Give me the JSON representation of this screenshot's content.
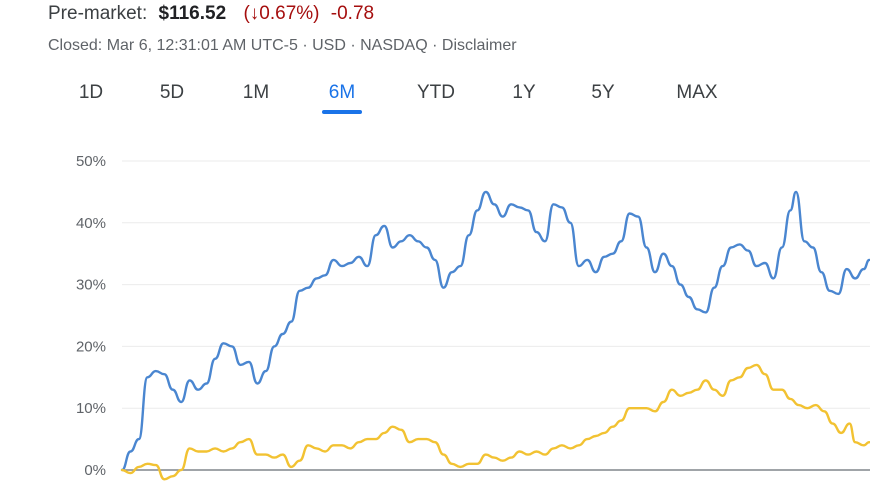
{
  "header": {
    "label": "Pre-market:",
    "price": "$116.52",
    "change_pct": "(↓0.67%)",
    "change_abs": "-0.78"
  },
  "status": {
    "text": "Closed: Mar 6, 12:31:01 AM UTC-5 · USD · NASDAQ · ",
    "disclaimer": "Disclaimer"
  },
  "ranges": [
    {
      "label": "1D",
      "active": false
    },
    {
      "label": "5D",
      "active": false
    },
    {
      "label": "1M",
      "active": false
    },
    {
      "label": "6M",
      "active": true
    },
    {
      "label": "YTD",
      "active": false
    },
    {
      "label": "1Y",
      "active": false
    },
    {
      "label": "5Y",
      "active": false
    },
    {
      "label": "MAX",
      "active": false
    }
  ],
  "colors": {
    "series_blue": "#4a86d0",
    "series_yellow": "#f2c232",
    "active": "#1a73e8",
    "negative": "#a50e0e"
  },
  "chart_data": {
    "type": "line",
    "ylim": [
      0,
      50
    ],
    "yticks": [
      {
        "value": 0,
        "label": "0%"
      },
      {
        "value": 10,
        "label": "10%"
      },
      {
        "value": 20,
        "label": "20%"
      },
      {
        "value": 30,
        "label": "30%"
      },
      {
        "value": 40,
        "label": "40%"
      },
      {
        "value": 50,
        "label": "50%"
      }
    ],
    "grid": true,
    "legend": false,
    "series": [
      {
        "color": "#4a86d0",
        "points": [
          [
            0,
            0
          ],
          [
            1.5,
            3
          ],
          [
            3,
            5
          ],
          [
            4.5,
            15
          ],
          [
            6,
            16
          ],
          [
            7.5,
            15.5
          ],
          [
            9,
            13
          ],
          [
            10.5,
            11
          ],
          [
            12,
            14.5
          ],
          [
            13.5,
            13
          ],
          [
            15,
            14
          ],
          [
            16.5,
            18
          ],
          [
            18,
            20.5
          ],
          [
            19.5,
            20
          ],
          [
            21,
            17
          ],
          [
            22.5,
            17.5
          ],
          [
            24,
            14
          ],
          [
            25.5,
            16
          ],
          [
            27,
            20
          ],
          [
            28.5,
            22
          ],
          [
            30,
            24
          ],
          [
            31.5,
            29
          ],
          [
            33,
            29.5
          ],
          [
            34.5,
            31
          ],
          [
            36,
            31.5
          ],
          [
            37.5,
            34
          ],
          [
            39,
            33
          ],
          [
            40.5,
            33.5
          ],
          [
            42,
            34.5
          ],
          [
            43.5,
            33
          ],
          [
            45,
            38
          ],
          [
            46.5,
            39.5
          ],
          [
            48,
            36
          ],
          [
            49.5,
            37
          ],
          [
            51,
            38
          ],
          [
            52.5,
            37
          ],
          [
            54,
            36
          ],
          [
            55.5,
            34
          ],
          [
            57,
            29.5
          ],
          [
            58.5,
            32
          ],
          [
            60,
            33
          ],
          [
            61.5,
            38
          ],
          [
            63,
            42
          ],
          [
            64.5,
            45
          ],
          [
            66,
            43
          ],
          [
            67.5,
            41
          ],
          [
            69,
            43
          ],
          [
            70.5,
            42.5
          ],
          [
            72,
            42
          ],
          [
            73.5,
            38.5
          ],
          [
            75,
            37
          ],
          [
            76.5,
            43
          ],
          [
            78,
            42.5
          ],
          [
            79.5,
            40
          ],
          [
            81,
            33
          ],
          [
            82.5,
            34
          ],
          [
            84,
            32
          ],
          [
            85.5,
            34.5
          ],
          [
            87,
            35
          ],
          [
            88.5,
            37
          ],
          [
            90,
            41.5
          ],
          [
            91.5,
            41
          ],
          [
            93,
            36
          ],
          [
            94.5,
            32
          ],
          [
            96,
            35
          ],
          [
            97.5,
            33
          ],
          [
            99,
            30
          ],
          [
            100.5,
            28
          ],
          [
            102,
            26
          ],
          [
            103.5,
            25.5
          ],
          [
            105,
            29.5
          ],
          [
            106.5,
            33
          ],
          [
            108,
            36
          ],
          [
            109.5,
            36.5
          ],
          [
            111,
            35.5
          ],
          [
            112.5,
            33
          ],
          [
            114,
            33.5
          ],
          [
            115.5,
            31
          ],
          [
            117,
            36
          ],
          [
            118.5,
            42
          ],
          [
            119.5,
            45
          ],
          [
            121,
            37
          ],
          [
            122.5,
            36
          ],
          [
            124,
            32
          ],
          [
            125.5,
            29
          ],
          [
            127,
            28.5
          ],
          [
            128.5,
            32.5
          ],
          [
            130,
            31
          ],
          [
            131.5,
            32.5
          ],
          [
            132.5,
            34
          ]
        ]
      },
      {
        "color": "#f2c232",
        "points": [
          [
            0,
            0
          ],
          [
            1.5,
            -0.5
          ],
          [
            3,
            0.5
          ],
          [
            4.5,
            1
          ],
          [
            6,
            0.8
          ],
          [
            7.5,
            -1.5
          ],
          [
            9,
            -1
          ],
          [
            10.5,
            0
          ],
          [
            12,
            3.5
          ],
          [
            13.5,
            3
          ],
          [
            15,
            3
          ],
          [
            16.5,
            3.5
          ],
          [
            18,
            3
          ],
          [
            19.5,
            3.5
          ],
          [
            21,
            4.5
          ],
          [
            22.5,
            5
          ],
          [
            24,
            2.5
          ],
          [
            25.5,
            2.5
          ],
          [
            27,
            2
          ],
          [
            28.5,
            2.5
          ],
          [
            30,
            0.5
          ],
          [
            31.5,
            1.5
          ],
          [
            33,
            4
          ],
          [
            34.5,
            3.5
          ],
          [
            36,
            3
          ],
          [
            37.5,
            4
          ],
          [
            39,
            4
          ],
          [
            40.5,
            3.5
          ],
          [
            42,
            4.5
          ],
          [
            43.5,
            5
          ],
          [
            45,
            5
          ],
          [
            46.5,
            6
          ],
          [
            48,
            7
          ],
          [
            49.5,
            6.5
          ],
          [
            51,
            4.5
          ],
          [
            52.5,
            5
          ],
          [
            54,
            5
          ],
          [
            55.5,
            4.5
          ],
          [
            57,
            2.5
          ],
          [
            58.5,
            1
          ],
          [
            60,
            0.5
          ],
          [
            61.5,
            1
          ],
          [
            63,
            1
          ],
          [
            64.5,
            2.5
          ],
          [
            66,
            2
          ],
          [
            67.5,
            1.5
          ],
          [
            69,
            2
          ],
          [
            70.5,
            3
          ],
          [
            72,
            2.5
          ],
          [
            73.5,
            3
          ],
          [
            75,
            2.5
          ],
          [
            76.5,
            3.5
          ],
          [
            78,
            4
          ],
          [
            79.5,
            3.5
          ],
          [
            81,
            4
          ],
          [
            82.5,
            5
          ],
          [
            84,
            5.5
          ],
          [
            85.5,
            6
          ],
          [
            87,
            7
          ],
          [
            88.5,
            8
          ],
          [
            90,
            10
          ],
          [
            91.5,
            10
          ],
          [
            93,
            10
          ],
          [
            94.5,
            9.5
          ],
          [
            96,
            11
          ],
          [
            97.5,
            13
          ],
          [
            99,
            12
          ],
          [
            100.5,
            12.5
          ],
          [
            102,
            13
          ],
          [
            103.5,
            14.5
          ],
          [
            105,
            13
          ],
          [
            106.5,
            12
          ],
          [
            108,
            14.5
          ],
          [
            109.5,
            15
          ],
          [
            111,
            16.5
          ],
          [
            112.5,
            17
          ],
          [
            114,
            15.5
          ],
          [
            115.5,
            13
          ],
          [
            117,
            13
          ],
          [
            118.5,
            11.5
          ],
          [
            120,
            10.5
          ],
          [
            121.5,
            10
          ],
          [
            123,
            10.5
          ],
          [
            124.5,
            9.5
          ],
          [
            126,
            7.5
          ],
          [
            127.5,
            6
          ],
          [
            129,
            7.5
          ],
          [
            130,
            4.5
          ],
          [
            131.5,
            4
          ],
          [
            132.5,
            4.5
          ]
        ]
      }
    ]
  }
}
